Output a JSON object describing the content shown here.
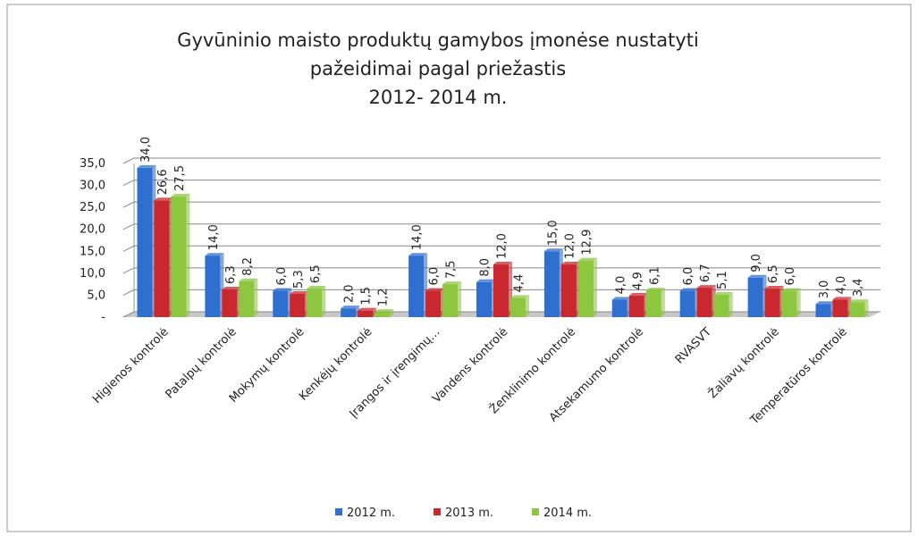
{
  "chart_data": {
    "type": "bar",
    "title": [
      "Gyvūninio maisto produktų gamybos įmonėse nustatyti",
      "pažeidimai pagal priežastis",
      "2012- 2014 m."
    ],
    "categories": [
      "Higienos kontrolė",
      "Patalpų kontrolė",
      "Mokymų kontrolė",
      "Kenkėjų kontrolė",
      "Įrangos ir įrengimų…",
      "Vandens kontrolė",
      "Ženklinimo kontrolė",
      "Atsekamumo kontrolė",
      "RVASVT",
      "Žaliavų kontrolė",
      "Temperatūros kontrolė"
    ],
    "series": [
      {
        "name": "2012 m.",
        "color": "#2f6fcf",
        "values": [
          34.0,
          14.0,
          6.0,
          2.0,
          14.0,
          8.0,
          15.0,
          4.0,
          6.0,
          9.0,
          3.0
        ],
        "value_labels": [
          "34,0",
          "14,0",
          "6,0",
          "2,0",
          "14,0",
          "8,0",
          "15,0",
          "4,0",
          "6,0",
          "9,0",
          "3,0"
        ]
      },
      {
        "name": "2013 m.",
        "color": "#c8282e",
        "values": [
          26.6,
          6.3,
          5.3,
          1.5,
          6.0,
          12.0,
          12.0,
          4.9,
          6.7,
          6.5,
          4.0
        ],
        "value_labels": [
          "26,6",
          "6,3",
          "5,3",
          "1,5",
          "6,0",
          "12,0",
          "12,0",
          "4,9",
          "6,7",
          "6,5",
          "4,0"
        ]
      },
      {
        "name": "2014 m.",
        "color": "#8dc63f",
        "values": [
          27.5,
          8.2,
          6.5,
          1.2,
          7.5,
          4.4,
          12.9,
          6.1,
          5.1,
          6.0,
          3.4
        ],
        "value_labels": [
          "27,5",
          "8,2",
          "6,5",
          "1,2",
          "7,5",
          "4,4",
          "12,9",
          "6,1",
          "5,1",
          "6,0",
          "3,4"
        ]
      }
    ],
    "ylim": [
      0,
      35
    ],
    "yticks": [
      {
        "value": 0,
        "label": "-"
      },
      {
        "value": 5,
        "label": "5,0"
      },
      {
        "value": 10,
        "label": "10,0"
      },
      {
        "value": 15,
        "label": "15,0"
      },
      {
        "value": 20,
        "label": "20,0"
      },
      {
        "value": 25,
        "label": "25,0"
      },
      {
        "value": 30,
        "label": "30,0"
      },
      {
        "value": 35,
        "label": "35,0"
      }
    ],
    "grid": true,
    "legend": "bottom"
  }
}
